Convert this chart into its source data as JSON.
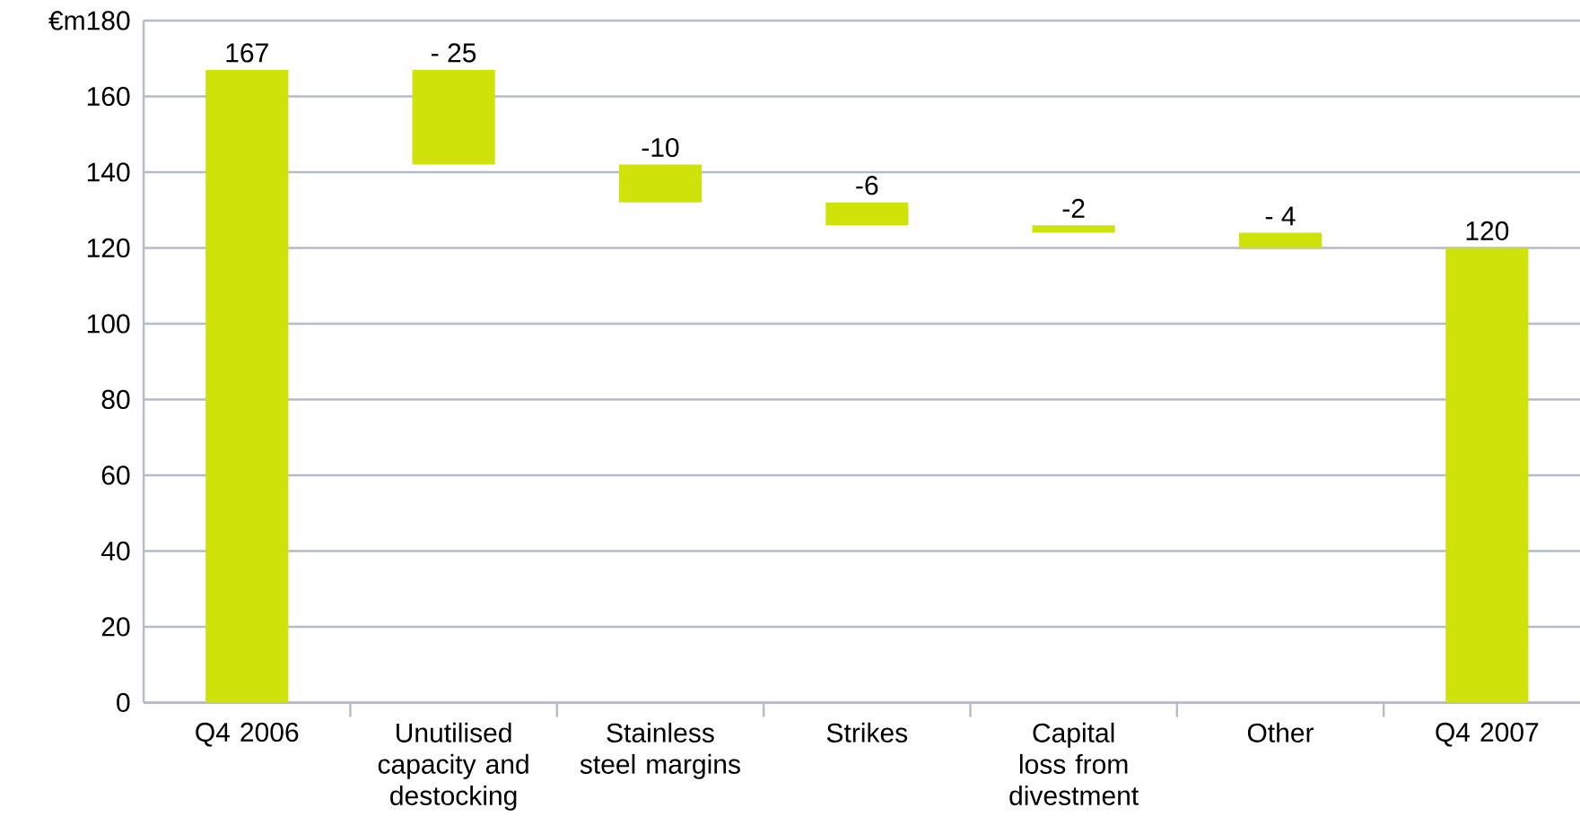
{
  "chart_data": {
    "type": "bar",
    "ylabel": "€m",
    "categories": [
      "Q4 2006",
      "Unutilised capacity and destocking",
      "Stainless steel margins",
      "Strikes",
      "Capital loss from divestment",
      "Other",
      "Q4 2007"
    ],
    "values": [
      167,
      -25,
      -10,
      -6,
      -2,
      -4,
      120
    ],
    "base": [
      0,
      167,
      142,
      132,
      126,
      124,
      0
    ],
    "value_labels": [
      "167",
      "- 25",
      "-10",
      "-6",
      "-2",
      "- 4",
      "120"
    ],
    "color": "#cfe30a",
    "ylim": [
      0,
      180
    ],
    "yticks": [
      0,
      20,
      40,
      60,
      80,
      100,
      120,
      140,
      160,
      180
    ],
    "grid": "y"
  }
}
